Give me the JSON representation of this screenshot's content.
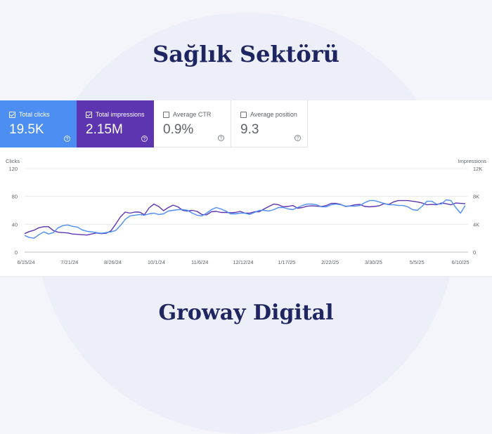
{
  "page": {
    "title": "Sağlık Sektörü",
    "footer": "Groway Digital"
  },
  "colors": {
    "clicks": "#4d8ef3",
    "impressions": "#5e35b1",
    "heading": "#1f2560"
  },
  "metrics": [
    {
      "label": "Total clicks",
      "value": "19.5K",
      "checked": true,
      "icon": "help-circle-icon"
    },
    {
      "label": "Total impressions",
      "value": "2.15M",
      "checked": true,
      "icon": "help-circle-icon"
    },
    {
      "label": "Average CTR",
      "value": "0.9%",
      "checked": false,
      "icon": "help-circle-icon"
    },
    {
      "label": "Average position",
      "value": "9.3",
      "checked": false,
      "icon": "help-circle-icon"
    }
  ],
  "chart_data": {
    "type": "line",
    "ylabel_left": "Clicks",
    "ylabel_right": "Impressions",
    "y_ticks_left": [
      "120",
      "80",
      "40",
      "0"
    ],
    "y_ticks_right": [
      "12K",
      "8K",
      "4K",
      "0"
    ],
    "ylim_left": [
      0,
      120
    ],
    "ylim_right": [
      0,
      12000
    ],
    "x_ticks": [
      "6/15/24",
      "7/21/24",
      "8/26/24",
      "10/1/24",
      "11/6/24",
      "12/12/24",
      "1/17/25",
      "2/22/25",
      "3/30/25",
      "5/5/25",
      "6/10/25"
    ],
    "grid": true,
    "series": [
      {
        "name": "Total clicks",
        "axis": "left",
        "values": [
          24,
          21,
          20,
          25,
          29,
          26,
          28,
          35,
          38,
          39,
          37,
          36,
          32,
          30,
          29,
          28,
          27,
          28,
          29,
          31,
          38,
          47,
          52,
          53,
          54,
          53,
          55,
          56,
          54,
          55,
          59,
          60,
          61,
          61,
          60,
          56,
          53,
          52,
          56,
          61,
          64,
          62,
          59,
          55,
          55,
          56,
          56,
          54,
          57,
          60,
          60,
          59,
          61,
          64,
          64,
          62,
          61,
          64,
          67,
          69,
          69,
          68,
          65,
          65,
          68,
          69,
          68,
          66,
          66,
          66,
          67,
          71,
          74,
          74,
          72,
          70,
          68,
          68,
          67,
          67,
          65,
          61,
          60,
          66,
          73,
          73,
          69,
          69,
          75,
          74,
          64,
          56,
          67
        ]
      },
      {
        "name": "Total impressions",
        "axis": "right",
        "values": [
          2650,
          2950,
          3150,
          3500,
          3650,
          3650,
          3100,
          2850,
          2800,
          2750,
          2600,
          2550,
          2500,
          2450,
          2600,
          2750,
          2650,
          2700,
          3050,
          4000,
          5050,
          5750,
          5600,
          5750,
          5750,
          5350,
          6350,
          6900,
          6550,
          5950,
          6400,
          6750,
          6500,
          6000,
          5900,
          6000,
          5850,
          5400,
          5350,
          5800,
          5850,
          5700,
          5700,
          5650,
          5700,
          5850,
          5600,
          5600,
          5800,
          5800,
          6200,
          6550,
          6900,
          6800,
          6500,
          6550,
          6700,
          6300,
          6400,
          6600,
          6650,
          6600,
          6550,
          6700,
          7000,
          7000,
          6850,
          6550,
          6650,
          6800,
          6850,
          6550,
          6500,
          6550,
          6650,
          6950,
          6850,
          7200,
          7400,
          7400,
          7400,
          7300,
          7200,
          7050,
          6800,
          6850,
          6800,
          7050,
          6950,
          6800,
          7050,
          7000,
          6950
        ]
      }
    ]
  }
}
